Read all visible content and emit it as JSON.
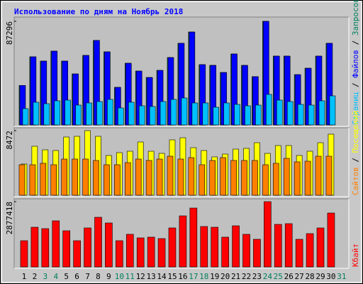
{
  "chart_data": [
    {
      "type": "bar",
      "title": "Использование по дням на Ноябрь 2018",
      "title_color": "#0000ff",
      "series": [
        {
          "name": "Страниц",
          "color": "#00c0ff",
          "values": [
            13750,
            19140,
            17940,
            20330,
            20930,
            16740,
            18540,
            19730,
            21530,
            14350,
            19140,
            16150,
            15550,
            19730,
            21530,
            22720,
            18540,
            18540,
            14950,
            18540,
            17340,
            16150,
            16740,
            25710,
            20930,
            19730,
            17340,
            16740,
            20330,
            24520,
            0
          ]
        },
        {
          "name": "Файлов",
          "color": "#0000ff",
          "values": [
            33300,
            57400,
            53800,
            62200,
            53800,
            43000,
            58600,
            71200,
            61600,
            31700,
            52000,
            45400,
            40000,
            46000,
            56800,
            68800,
            78300,
            50800,
            50200,
            44200,
            59800,
            50200,
            40700,
            87296,
            58000,
            58000,
            42400,
            47800,
            58000,
            68800,
            0
          ]
        },
        {
          "name": "Запросов",
          "color": "#00805c",
          "values": [
            33300,
            57400,
            53800,
            62200,
            53800,
            43000,
            58600,
            71200,
            61600,
            31700,
            52000,
            45400,
            40000,
            46000,
            56800,
            68800,
            78300,
            50800,
            50200,
            44200,
            59800,
            50200,
            40700,
            87296,
            58000,
            58000,
            42400,
            47800,
            58000,
            68800,
            0
          ]
        }
      ],
      "legend_separator": " / ",
      "ylim": [
        0,
        87296
      ],
      "yticks": [
        87296
      ]
    },
    {
      "type": "bar",
      "series": [
        {
          "name": "Сайтов",
          "color": "#ff8000",
          "values": [
            4003,
            4003,
            4190,
            4003,
            4748,
            4748,
            4748,
            4562,
            4003,
            4003,
            4283,
            4748,
            4562,
            4748,
            5121,
            4748,
            4934,
            4003,
            4562,
            4934,
            4562,
            4562,
            4562,
            4003,
            4190,
            4841,
            4376,
            4469,
            5121,
            5121,
            0
          ]
        },
        {
          "name": "Посещений",
          "color": "#ffff00",
          "values": [
            4096,
            6424,
            5958,
            5865,
            7634,
            7727,
            8472,
            7727,
            5214,
            5586,
            5772,
            6983,
            5772,
            5493,
            7262,
            7541,
            6238,
            5865,
            5027,
            5400,
            6052,
            6145,
            6889,
            5493,
            6517,
            6517,
            5214,
            5772,
            6889,
            8007,
            0
          ]
        }
      ],
      "legend_separator": " / ",
      "ylim": [
        0,
        8472
      ],
      "yticks": [
        8472
      ]
    },
    {
      "type": "bar",
      "categories": [
        "1",
        "2",
        "3",
        "4",
        "5",
        "6",
        "7",
        "8",
        "9",
        "10",
        "11",
        "12",
        "13",
        "14",
        "15",
        "16",
        "17",
        "18",
        "19",
        "20",
        "21",
        "22",
        "23",
        "24",
        "25",
        "26",
        "27",
        "28",
        "29",
        "30",
        "31"
      ],
      "category_colors": [
        "#000000",
        "#000000",
        "#00805c",
        "#00805c",
        "#000000",
        "#000000",
        "#000000",
        "#000000",
        "#000000",
        "#00805c",
        "#00805c",
        "#000000",
        "#000000",
        "#000000",
        "#000000",
        "#000000",
        "#00805c",
        "#00805c",
        "#000000",
        "#000000",
        "#000000",
        "#000000",
        "#000000",
        "#00805c",
        "#00805c",
        "#000000",
        "#000000",
        "#000000",
        "#000000",
        "#000000",
        "#00805c"
      ],
      "series": [
        {
          "name": "Кбайт",
          "color": "#ff0000",
          "values": [
            1157000,
            1751000,
            1689000,
            2033000,
            1595000,
            1157000,
            1720000,
            2189000,
            1939000,
            1157000,
            1439000,
            1282000,
            1314000,
            1251000,
            1720000,
            2252000,
            2596000,
            1783000,
            1751000,
            1314000,
            1814000,
            1439000,
            1220000,
            2877418,
            1877000,
            1908000,
            1220000,
            1470000,
            1720000,
            2377000,
            0
          ]
        }
      ],
      "ylim": [
        0,
        2877418
      ],
      "yticks": [
        2877418
      ]
    }
  ]
}
